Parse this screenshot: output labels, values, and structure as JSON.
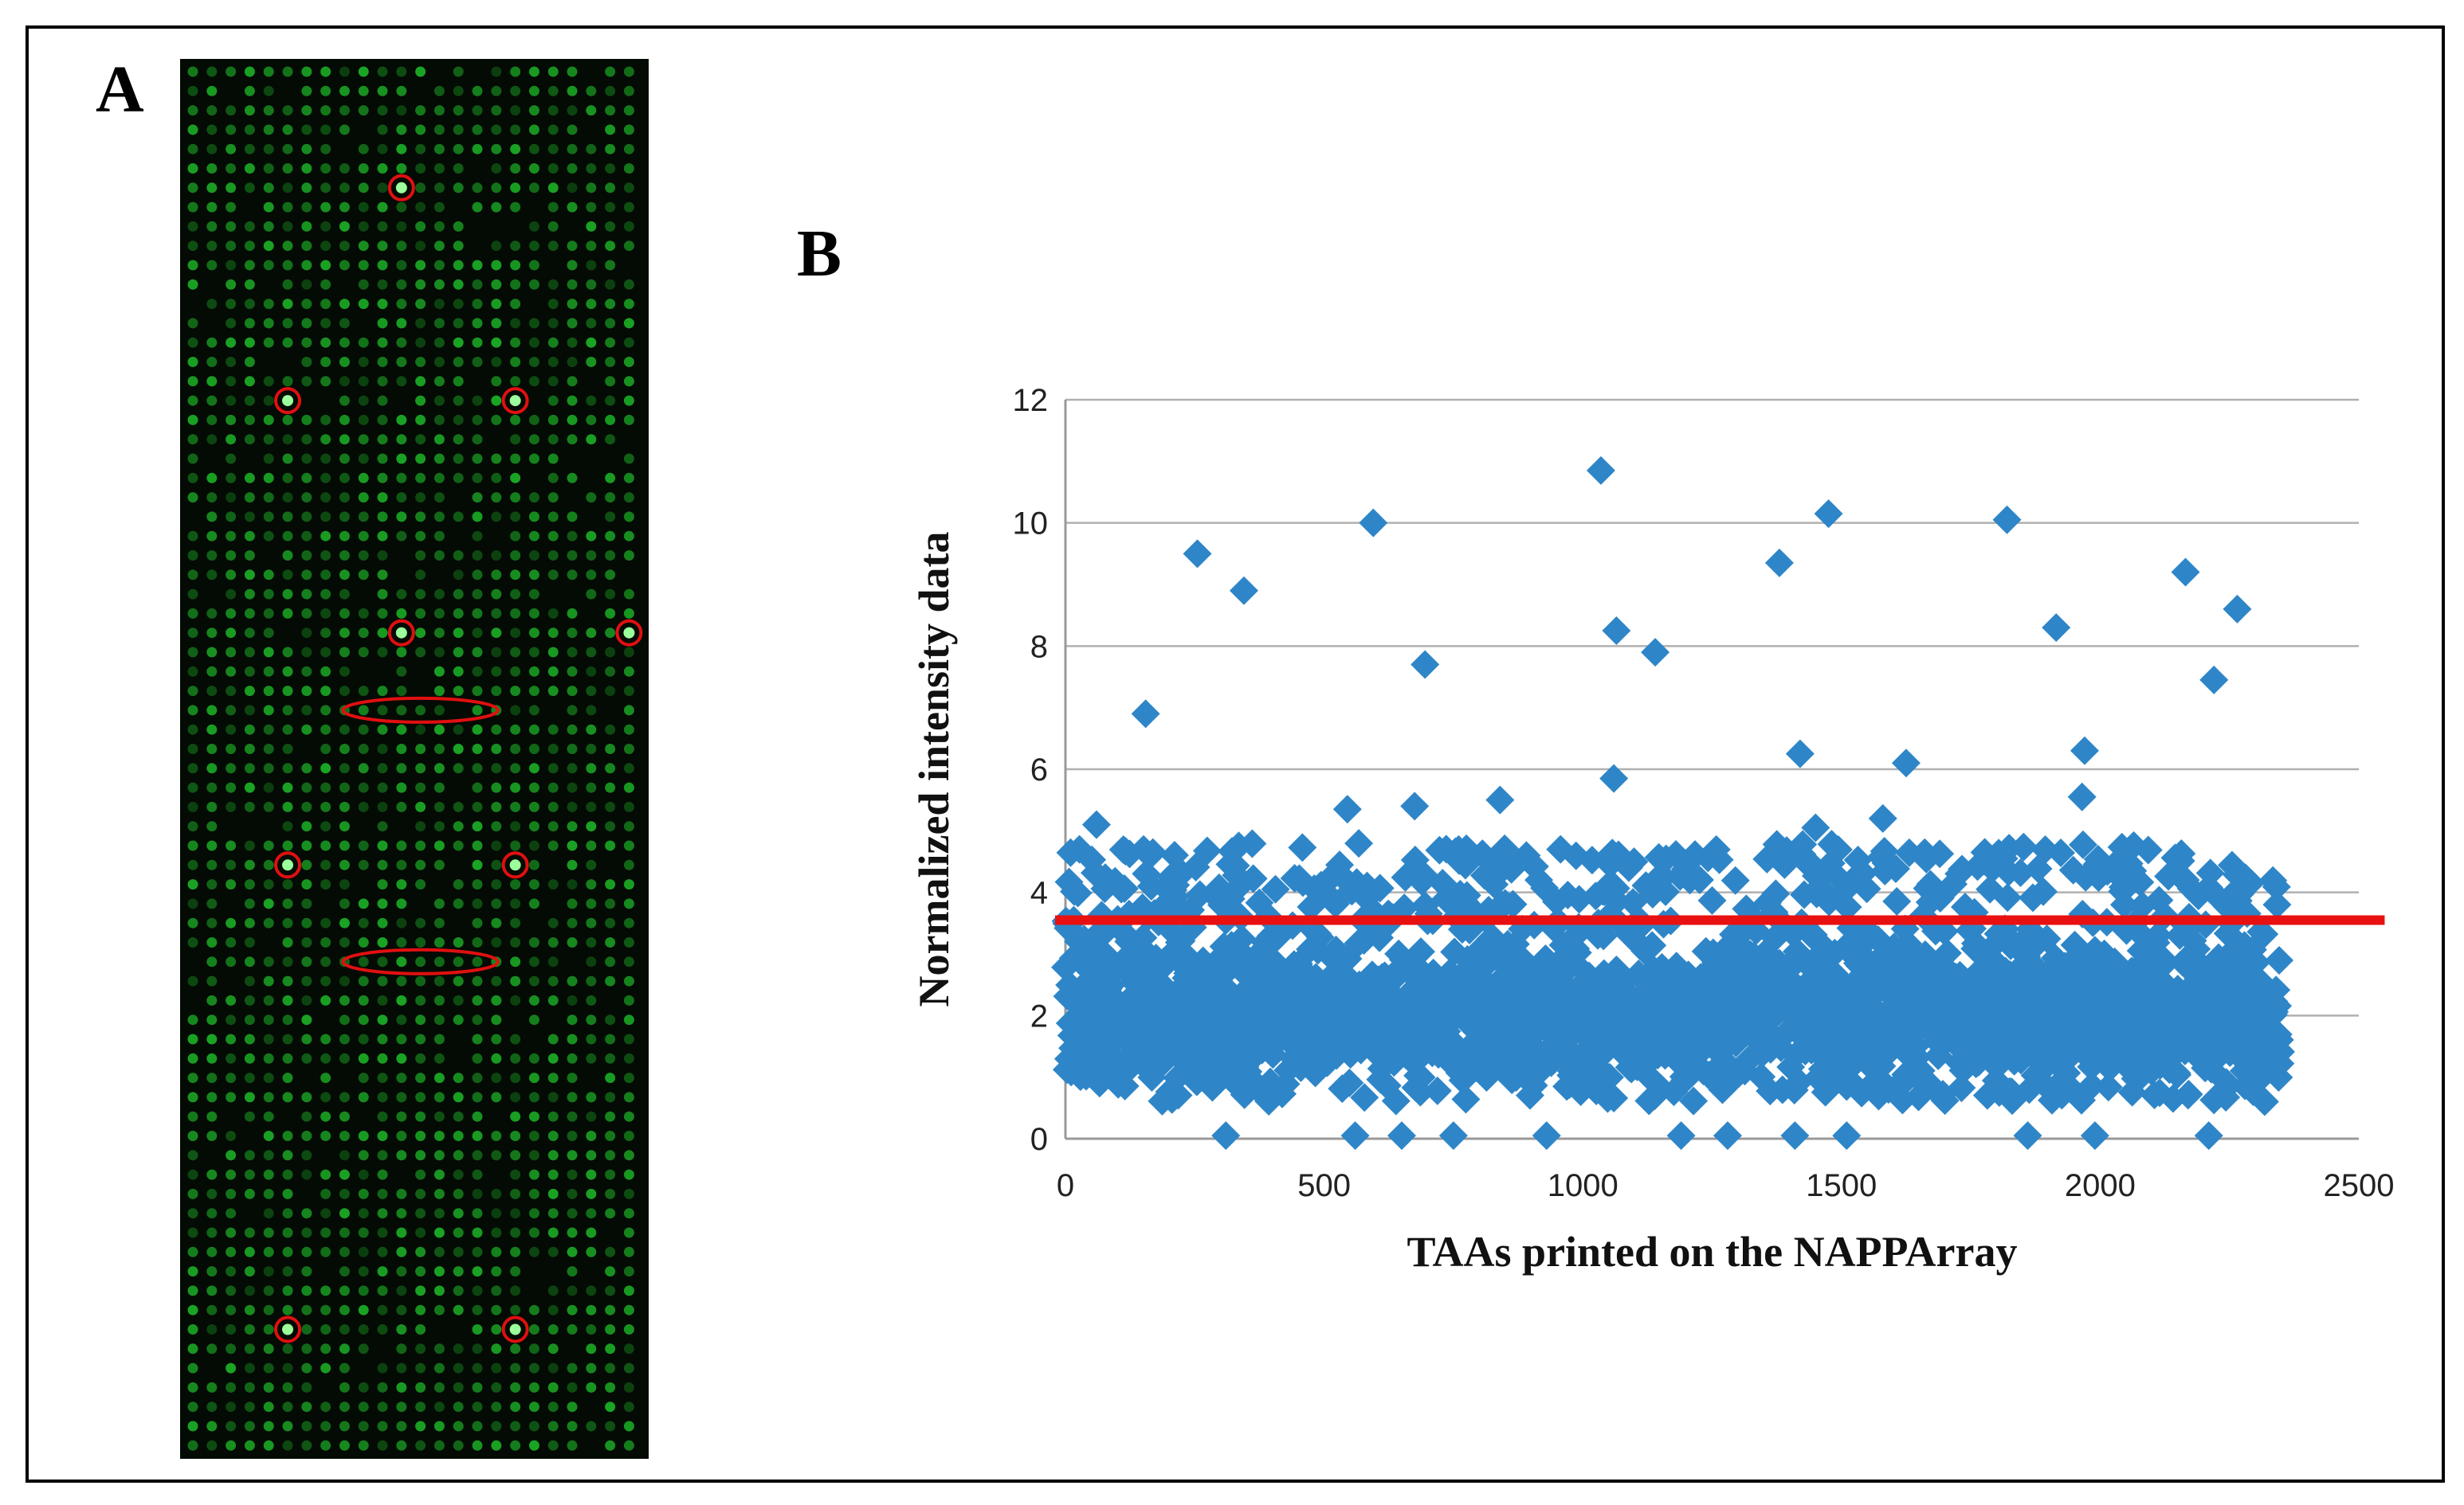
{
  "panels": {
    "a_label": "A",
    "b_label": "B"
  },
  "array_image": {
    "description_icon": "protein-microarray-image",
    "background_color": "#040a04",
    "spot_color": "#1fbf2a",
    "marker_color": "#e01010",
    "marked_spots_grid": [
      {
        "col": 11,
        "row": 6,
        "shape": "circle"
      },
      {
        "col": 5,
        "row": 17,
        "shape": "circle"
      },
      {
        "col": 17,
        "row": 17,
        "shape": "circle"
      },
      {
        "col": 11,
        "row": 29,
        "shape": "circle"
      },
      {
        "col": 23,
        "row": 29,
        "shape": "circle"
      },
      {
        "col": 9,
        "row": 33,
        "shape": "ellipse",
        "span": 7
      },
      {
        "col": 5,
        "row": 41,
        "shape": "circle"
      },
      {
        "col": 17,
        "row": 41,
        "shape": "circle"
      },
      {
        "col": 9,
        "row": 46,
        "shape": "ellipse",
        "span": 7
      },
      {
        "col": 5,
        "row": 65,
        "shape": "circle"
      },
      {
        "col": 17,
        "row": 65,
        "shape": "circle"
      }
    ]
  },
  "chart_data": {
    "type": "scatter",
    "marker": "diamond",
    "series_color": "#2e86c8",
    "threshold_color": "#e81010",
    "title": "",
    "xlabel": "TAAs printed on the NAPPArray",
    "ylabel": "Normalized  intensity data",
    "xlim": [
      0,
      2500
    ],
    "ylim": [
      0,
      12
    ],
    "xticks": [
      0,
      500,
      1000,
      1500,
      2000,
      2500
    ],
    "yticks": [
      0,
      2,
      4,
      6,
      8,
      10,
      12
    ],
    "n_points": 2350,
    "bulk_range": [
      0.6,
      4.8
    ],
    "threshold_line": {
      "y_start": 3.55,
      "y_end": 3.55,
      "x_start": -20,
      "x_end": 2550
    },
    "highlighted_points": [
      {
        "x": 155,
        "y": 6.9
      },
      {
        "x": 255,
        "y": 9.5
      },
      {
        "x": 345,
        "y": 8.9
      },
      {
        "x": 595,
        "y": 10.0
      },
      {
        "x": 695,
        "y": 7.7
      },
      {
        "x": 1035,
        "y": 10.85
      },
      {
        "x": 1065,
        "y": 8.25
      },
      {
        "x": 1060,
        "y": 5.85
      },
      {
        "x": 1140,
        "y": 7.9
      },
      {
        "x": 1380,
        "y": 9.35
      },
      {
        "x": 1420,
        "y": 6.25
      },
      {
        "x": 1475,
        "y": 10.15
      },
      {
        "x": 1625,
        "y": 6.1
      },
      {
        "x": 1820,
        "y": 10.05
      },
      {
        "x": 1915,
        "y": 8.3
      },
      {
        "x": 1970,
        "y": 6.3
      },
      {
        "x": 1965,
        "y": 5.55
      },
      {
        "x": 2165,
        "y": 9.2
      },
      {
        "x": 2220,
        "y": 7.45
      },
      {
        "x": 2265,
        "y": 8.6
      },
      {
        "x": 840,
        "y": 5.5
      },
      {
        "x": 545,
        "y": 5.35
      },
      {
        "x": 675,
        "y": 5.4
      },
      {
        "x": 60,
        "y": 5.1
      },
      {
        "x": 1450,
        "y": 5.05
      },
      {
        "x": 1580,
        "y": 5.2
      },
      {
        "x": 310,
        "y": 0.05
      },
      {
        "x": 560,
        "y": 0.05
      },
      {
        "x": 650,
        "y": 0.05
      },
      {
        "x": 750,
        "y": 0.05
      },
      {
        "x": 930,
        "y": 0.05
      },
      {
        "x": 1190,
        "y": 0.05
      },
      {
        "x": 1280,
        "y": 0.05
      },
      {
        "x": 1410,
        "y": 0.05
      },
      {
        "x": 1510,
        "y": 0.05
      },
      {
        "x": 1860,
        "y": 0.05
      },
      {
        "x": 1990,
        "y": 0.05
      },
      {
        "x": 2210,
        "y": 0.05
      }
    ]
  }
}
